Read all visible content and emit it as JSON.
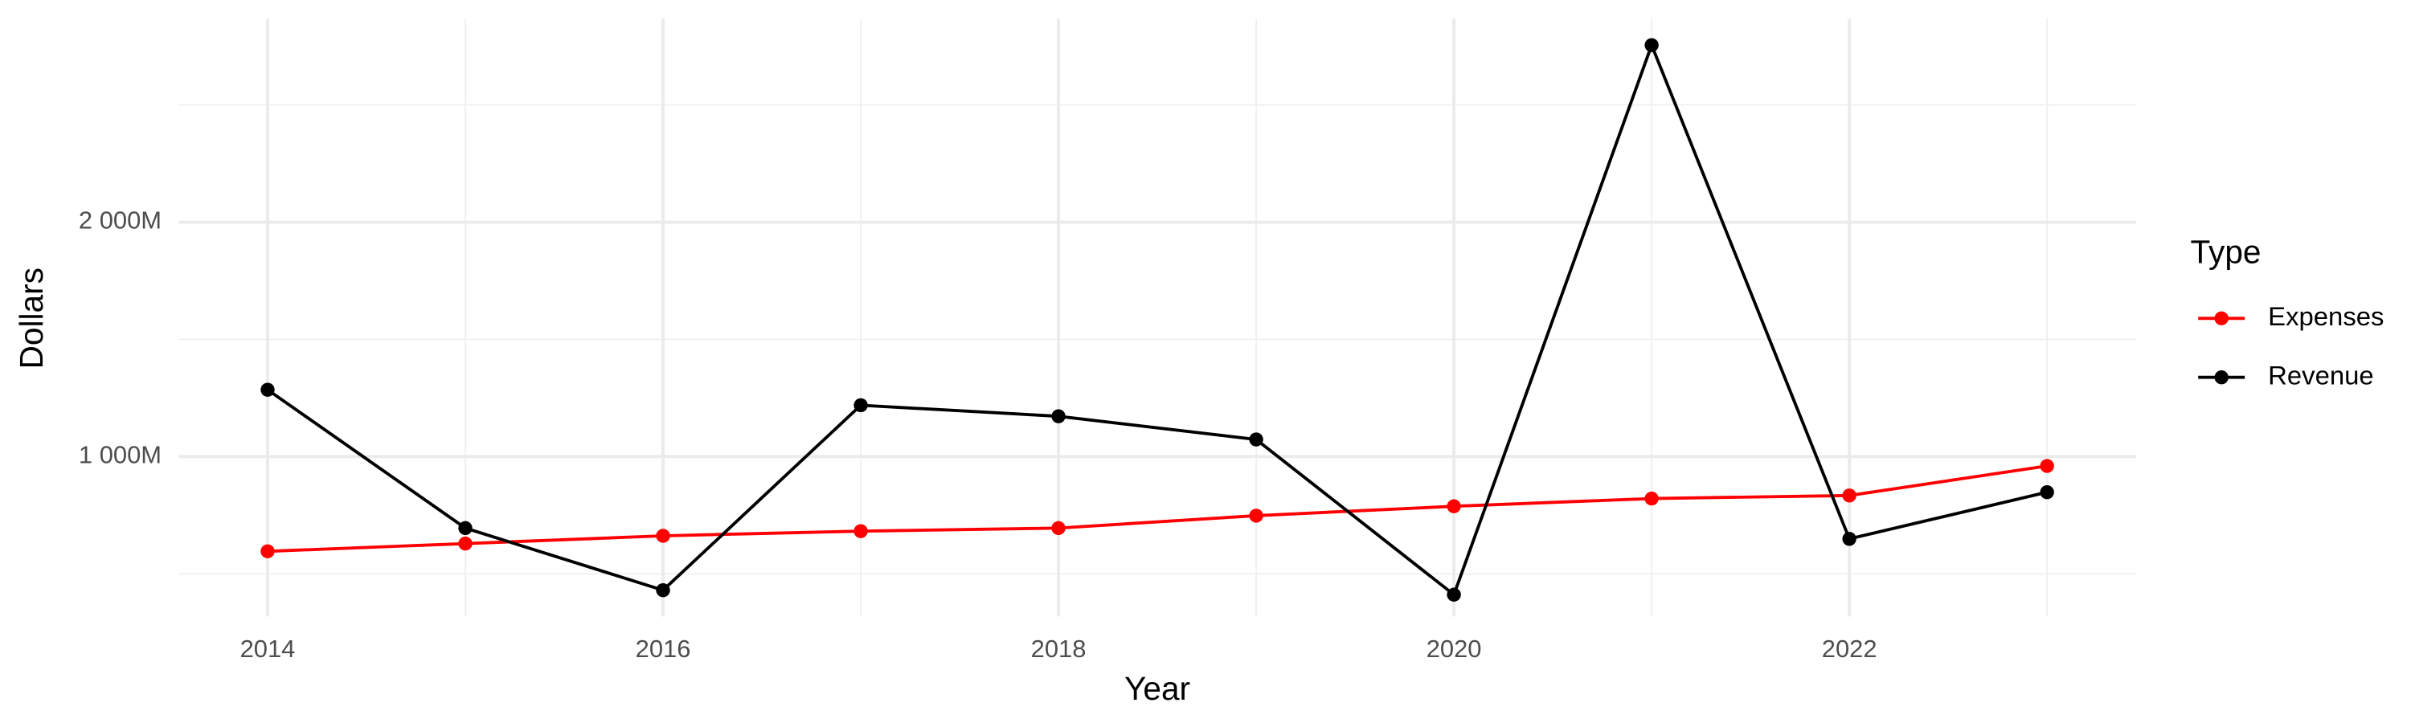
{
  "chart_data": {
    "type": "line",
    "x_label": "Year",
    "y_label": "Dollars",
    "legend_title": "Type",
    "x": [
      2014,
      2015,
      2016,
      2017,
      2018,
      2019,
      2020,
      2021,
      2022,
      2023
    ],
    "series": [
      {
        "name": "Expenses",
        "color": "#ff0000",
        "values": [
          596,
          629,
          662,
          682,
          695,
          748,
          788,
          821,
          834,
          960
        ]
      },
      {
        "name": "Revenue",
        "color": "#000000",
        "values": [
          1285,
          695,
          430,
          1219,
          1172,
          1073,
          411,
          2755,
          649,
          848
        ]
      }
    ],
    "xlim": [
      2013.55,
      2023.45
    ],
    "xticks": [
      2014,
      2016,
      2018,
      2020,
      2022
    ],
    "x_minor_ticks": [
      2015,
      2017,
      2019,
      2021,
      2023
    ],
    "ylim": [
      318,
      2868
    ],
    "yticks": [
      {
        "value": 1000,
        "label": "1 000M"
      },
      {
        "value": 2000,
        "label": "2 000M"
      }
    ],
    "y_minor_ticks": [
      500,
      1500,
      2500
    ],
    "grid": true,
    "legend": "right"
  }
}
